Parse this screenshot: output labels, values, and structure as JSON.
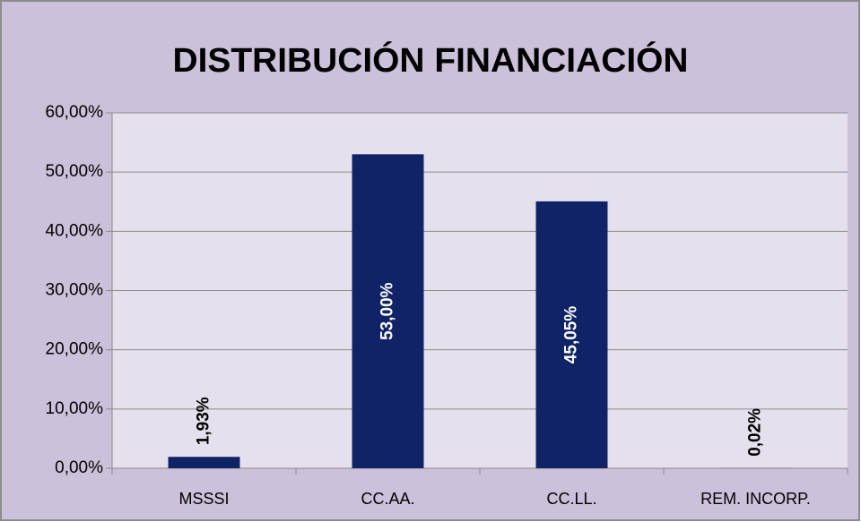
{
  "chart_data": {
    "type": "bar",
    "title": "DISTRIBUCIÓN FINANCIACIÓN",
    "categories": [
      "MSSSI",
      "CC.AA.",
      "CC.LL.",
      "REM. INCORP."
    ],
    "values": [
      1.93,
      53.0,
      45.05,
      0.02
    ],
    "value_labels": [
      "1,93%",
      "53,00%",
      "45,05%",
      "0,02%"
    ],
    "color": "#0f2366",
    "ylim": [
      0,
      60
    ],
    "yticks": [
      {
        "value": 0,
        "label": "0,00%"
      },
      {
        "value": 10,
        "label": "10,00%"
      },
      {
        "value": 20,
        "label": "20,00%"
      },
      {
        "value": 30,
        "label": "30,00%"
      },
      {
        "value": 40,
        "label": "40,00%"
      },
      {
        "value": 50,
        "label": "50,00%"
      },
      {
        "value": 60,
        "label": "60,00%"
      }
    ],
    "grid": true
  }
}
